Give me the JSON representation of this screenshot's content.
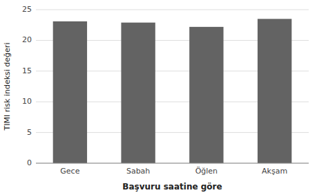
{
  "chart_data": {
    "type": "bar",
    "categories": [
      "Gece",
      "Sabah",
      "Öğlen",
      "Akşam"
    ],
    "values": [
      23.1,
      22.9,
      22.2,
      23.5
    ],
    "color": "#636363",
    "xlabel": "Başvuru saatine göre",
    "ylabel": "TIMI risk indeksi değeri",
    "ylim": [
      0,
      25
    ],
    "yticks": [
      0,
      5,
      10,
      15,
      20,
      25
    ],
    "grid": true
  }
}
